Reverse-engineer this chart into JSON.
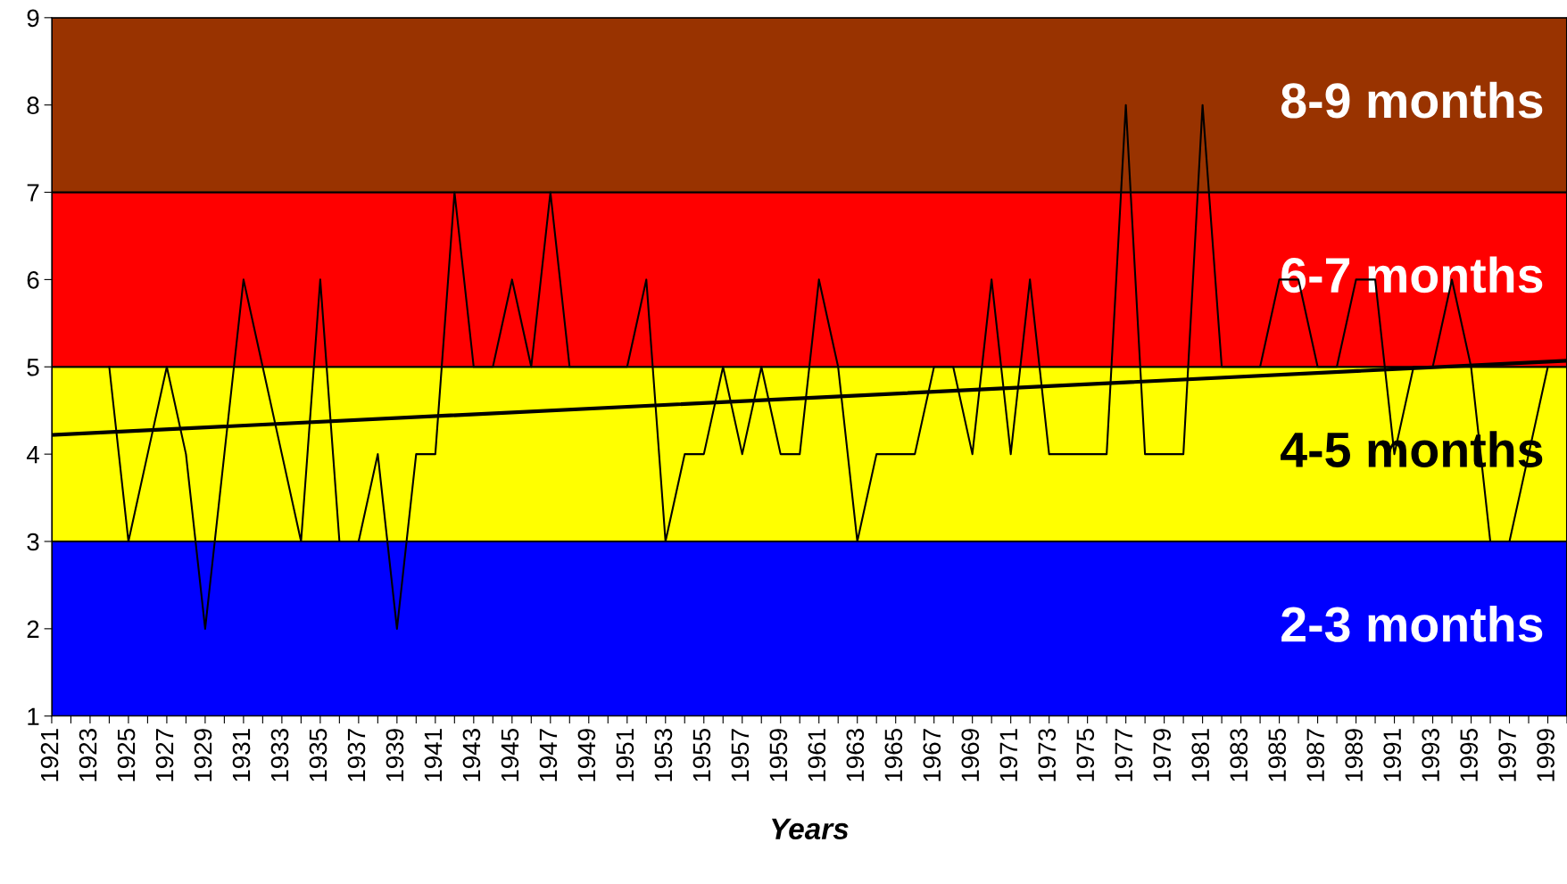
{
  "chart_data": {
    "type": "line",
    "xlabel": "Years",
    "x": [
      1924,
      1925,
      1926,
      1927,
      1928,
      1929,
      1930,
      1931,
      1932,
      1933,
      1934,
      1935,
      1936,
      1937,
      1938,
      1939,
      1940,
      1941,
      1942,
      1943,
      1944,
      1945,
      1946,
      1947,
      1948,
      1949,
      1950,
      1951,
      1952,
      1953,
      1954,
      1955,
      1956,
      1957,
      1958,
      1959,
      1960,
      1961,
      1962,
      1963,
      1964,
      1965,
      1966,
      1967,
      1968,
      1969,
      1970,
      1971,
      1972,
      1973,
      1974,
      1975,
      1976,
      1977,
      1978,
      1979,
      1980,
      1981,
      1982,
      1983,
      1984,
      1985,
      1986,
      1987,
      1988,
      1989,
      1990,
      1991,
      1992,
      1993,
      1994,
      1995,
      1996,
      1997,
      1998,
      1999
    ],
    "series": [
      {
        "color": "#000000",
        "values": [
          5,
          3,
          4,
          5,
          4,
          2,
          4,
          6,
          5,
          4,
          3,
          6,
          3,
          3,
          4,
          2,
          4,
          4,
          7,
          5,
          5,
          6,
          5,
          7,
          5,
          5,
          5,
          5,
          6,
          3,
          4,
          4,
          5,
          4,
          5,
          4,
          4,
          6,
          5,
          3,
          4,
          4,
          4,
          5,
          5,
          4,
          6,
          4,
          6,
          4,
          4,
          4,
          4,
          8,
          4,
          4,
          4,
          8,
          5,
          5,
          5,
          6,
          6,
          5,
          5,
          6,
          6,
          4,
          5,
          5,
          6,
          5,
          3,
          3,
          4,
          5
        ]
      },
      {
        "type": "line",
        "color": "#000000",
        "x": [
          1921,
          2000
        ],
        "values": [
          4.22,
          5.07
        ]
      }
    ],
    "bands": [
      {
        "axis": "y",
        "from": 1,
        "to": 3,
        "label": "2-3 months",
        "color": "#0000ff"
      },
      {
        "axis": "y",
        "from": 3,
        "to": 5,
        "label": "4-5 months",
        "color": "#ffff00"
      },
      {
        "axis": "y",
        "from": 5,
        "to": 7,
        "label": "6-7 months",
        "color": "#ff0000"
      },
      {
        "axis": "y",
        "from": 7,
        "to": 9,
        "label": "8-9 months",
        "color": "#993300"
      }
    ],
    "xlim": [
      1921,
      2000
    ],
    "xticks": [
      1921,
      {
        "value": 1922,
        "label": null
      },
      1923,
      {
        "value": 1924,
        "label": null
      },
      1925,
      {
        "value": 1926,
        "label": null
      },
      1927,
      {
        "value": 1928,
        "label": null
      },
      1929,
      {
        "value": 1930,
        "label": null
      },
      1931,
      {
        "value": 1932,
        "label": null
      },
      1933,
      {
        "value": 1934,
        "label": null
      },
      1935,
      {
        "value": 1936,
        "label": null
      },
      1937,
      {
        "value": 1938,
        "label": null
      },
      1939,
      {
        "value": 1940,
        "label": null
      },
      1941,
      {
        "value": 1942,
        "label": null
      },
      1943,
      {
        "value": 1944,
        "label": null
      },
      1945,
      {
        "value": 1946,
        "label": null
      },
      1947,
      {
        "value": 1948,
        "label": null
      },
      1949,
      {
        "value": 1950,
        "label": null
      },
      1951,
      {
        "value": 1952,
        "label": null
      },
      1953,
      {
        "value": 1954,
        "label": null
      },
      1955,
      {
        "value": 1956,
        "label": null
      },
      1957,
      {
        "value": 1958,
        "label": null
      },
      1959,
      {
        "value": 1960,
        "label": null
      },
      1961,
      {
        "value": 1962,
        "label": null
      },
      1963,
      {
        "value": 1964,
        "label": null
      },
      1965,
      {
        "value": 1966,
        "label": null
      },
      1967,
      {
        "value": 1968,
        "label": null
      },
      1969,
      {
        "value": 1970,
        "label": null
      },
      1971,
      {
        "value": 1972,
        "label": null
      },
      1973,
      {
        "value": 1974,
        "label": null
      },
      1975,
      {
        "value": 1976,
        "label": null
      },
      1977,
      {
        "value": 1978,
        "label": null
      },
      1979,
      {
        "value": 1980,
        "label": null
      },
      1981,
      {
        "value": 1982,
        "label": null
      },
      1983,
      {
        "value": 1984,
        "label": null
      },
      1985,
      {
        "value": 1986,
        "label": null
      },
      1987,
      {
        "value": 1988,
        "label": null
      },
      1989,
      {
        "value": 1990,
        "label": null
      },
      1991,
      {
        "value": 1992,
        "label": null
      },
      1993,
      {
        "value": 1994,
        "label": null
      },
      1995,
      {
        "value": 1996,
        "label": null
      },
      1997,
      {
        "value": 1998,
        "label": null
      },
      1999,
      {
        "value": 2000,
        "label": null
      }
    ],
    "ylim": [
      1,
      9
    ],
    "yticks": [
      1,
      2,
      3,
      4,
      5,
      6,
      7,
      8,
      9
    ],
    "grid": false,
    "legend": false
  }
}
